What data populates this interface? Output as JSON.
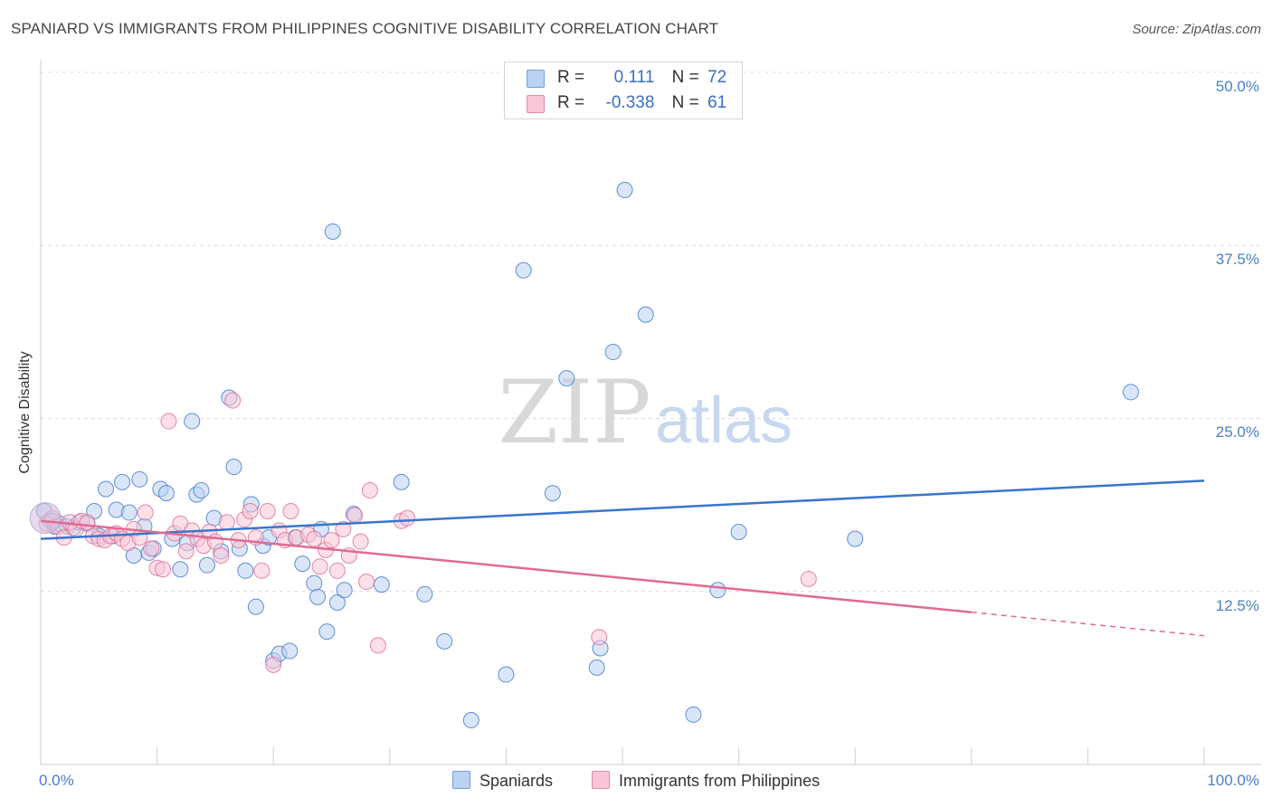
{
  "title": "SPANIARD VS IMMIGRANTS FROM PHILIPPINES COGNITIVE DISABILITY CORRELATION CHART",
  "source": "Source: ZipAtlas.com",
  "watermark": {
    "zip": "ZIP",
    "atlas": "atlas"
  },
  "legend": {
    "r_label": "R =",
    "n_label": "N =",
    "rows": [
      {
        "r": "0.111",
        "n": "72",
        "color": "#6f9ee0",
        "fill": "#bcd2f3"
      },
      {
        "r": "-0.338",
        "n": "61",
        "color": "#e88aa8",
        "fill": "#f8c6d6"
      }
    ]
  },
  "bottom_legend": [
    "Spaniards",
    "Immigrants from Philippines"
  ],
  "chart_data": {
    "type": "scatter",
    "title": "SPANIARD VS IMMIGRANTS FROM PHILIPPINES COGNITIVE DISABILITY CORRELATION CHART",
    "ylabel": "Cognitive Disability",
    "xlabel": "",
    "xlim": [
      0,
      100
    ],
    "ylim": [
      0,
      50
    ],
    "x_tick_labels": [
      "0.0%",
      "100.0%"
    ],
    "y_ticks": [
      12.5,
      25.0,
      37.5,
      50.0
    ],
    "y_tick_labels": [
      "12.5%",
      "25.0%",
      "37.5%",
      "50.0%"
    ],
    "grid": true,
    "legend_position": "top-center",
    "series": [
      {
        "name": "Spaniards",
        "color": "#3a75cc",
        "fill": "#bcd2f3",
        "trend": {
          "x": [
            0,
            100
          ],
          "y": [
            16.3,
            20.5
          ]
        },
        "points": [
          [
            0.3,
            18.3
          ],
          [
            0.8,
            17.6
          ],
          [
            1.2,
            17.2
          ],
          [
            1.6,
            17.4
          ],
          [
            2.3,
            17.2
          ],
          [
            2.8,
            17.1
          ],
          [
            3.3,
            17.5
          ],
          [
            4.0,
            17.4
          ],
          [
            4.6,
            18.3
          ],
          [
            5.0,
            16.5
          ],
          [
            5.6,
            19.9
          ],
          [
            6.2,
            16.5
          ],
          [
            6.5,
            18.4
          ],
          [
            7.0,
            20.4
          ],
          [
            7.6,
            18.2
          ],
          [
            8.0,
            15.1
          ],
          [
            8.5,
            20.6
          ],
          [
            8.9,
            17.2
          ],
          [
            9.3,
            15.3
          ],
          [
            9.7,
            15.6
          ],
          [
            10.3,
            19.9
          ],
          [
            10.8,
            19.6
          ],
          [
            11.3,
            16.3
          ],
          [
            12.0,
            14.1
          ],
          [
            12.6,
            16.0
          ],
          [
            13.0,
            24.8
          ],
          [
            13.4,
            19.5
          ],
          [
            13.8,
            19.8
          ],
          [
            14.3,
            14.4
          ],
          [
            14.9,
            17.8
          ],
          [
            15.5,
            15.4
          ],
          [
            16.2,
            26.5
          ],
          [
            16.6,
            21.5
          ],
          [
            17.1,
            15.6
          ],
          [
            17.6,
            14.0
          ],
          [
            18.1,
            18.8
          ],
          [
            18.5,
            11.4
          ],
          [
            19.1,
            15.8
          ],
          [
            19.6,
            16.4
          ],
          [
            20.0,
            7.5
          ],
          [
            20.5,
            8.0
          ],
          [
            21.4,
            8.2
          ],
          [
            21.9,
            16.4
          ],
          [
            22.5,
            14.5
          ],
          [
            23.5,
            13.1
          ],
          [
            23.8,
            12.1
          ],
          [
            24.1,
            17.0
          ],
          [
            24.6,
            9.6
          ],
          [
            25.1,
            38.5
          ],
          [
            25.5,
            11.7
          ],
          [
            26.1,
            12.6
          ],
          [
            26.9,
            18.1
          ],
          [
            29.3,
            13.0
          ],
          [
            31.0,
            20.4
          ],
          [
            33.0,
            12.3
          ],
          [
            34.7,
            8.9
          ],
          [
            37.0,
            3.2
          ],
          [
            40.0,
            6.5
          ],
          [
            41.5,
            35.7
          ],
          [
            44.0,
            19.6
          ],
          [
            45.2,
            27.9
          ],
          [
            47.8,
            7.0
          ],
          [
            48.1,
            8.4
          ],
          [
            49.2,
            29.8
          ],
          [
            50.2,
            41.5
          ],
          [
            52.0,
            32.5
          ],
          [
            56.1,
            3.6
          ],
          [
            58.2,
            12.6
          ],
          [
            60.0,
            16.8
          ],
          [
            70.0,
            16.3
          ],
          [
            93.7,
            26.9
          ],
          [
            1.0,
            17.6
          ]
        ]
      },
      {
        "name": "Immigrants from Philippines",
        "color": "#e06a95",
        "fill": "#f8c6d6",
        "trend": {
          "x": [
            0,
            80
          ],
          "y": [
            17.6,
            11.0
          ]
        },
        "trend_dashed": {
          "x": [
            80,
            100
          ],
          "y": [
            11.0,
            9.3
          ]
        },
        "points": [
          [
            0.5,
            17.4
          ],
          [
            1.0,
            17.8
          ],
          [
            1.5,
            17.2
          ],
          [
            2.0,
            16.4
          ],
          [
            2.5,
            17.5
          ],
          [
            3.0,
            17.0
          ],
          [
            3.5,
            17.6
          ],
          [
            4.0,
            17.5
          ],
          [
            4.5,
            16.5
          ],
          [
            5.0,
            16.3
          ],
          [
            5.5,
            16.2
          ],
          [
            6.0,
            16.5
          ],
          [
            6.5,
            16.7
          ],
          [
            7.0,
            16.3
          ],
          [
            7.5,
            16.0
          ],
          [
            8.0,
            17.0
          ],
          [
            8.5,
            16.4
          ],
          [
            9.0,
            18.2
          ],
          [
            9.5,
            15.6
          ],
          [
            10.0,
            14.2
          ],
          [
            10.5,
            14.1
          ],
          [
            11.0,
            24.8
          ],
          [
            11.5,
            16.7
          ],
          [
            12.0,
            17.4
          ],
          [
            12.5,
            15.4
          ],
          [
            13.0,
            16.9
          ],
          [
            13.5,
            16.3
          ],
          [
            14.0,
            15.8
          ],
          [
            14.5,
            16.8
          ],
          [
            15.0,
            16.1
          ],
          [
            15.5,
            15.1
          ],
          [
            16.0,
            17.5
          ],
          [
            16.5,
            26.3
          ],
          [
            17.0,
            16.2
          ],
          [
            17.5,
            17.7
          ],
          [
            18.0,
            18.3
          ],
          [
            18.5,
            16.4
          ],
          [
            19.0,
            14.0
          ],
          [
            19.5,
            18.3
          ],
          [
            20.0,
            7.2
          ],
          [
            20.5,
            16.9
          ],
          [
            21.0,
            16.2
          ],
          [
            21.5,
            18.3
          ],
          [
            22.0,
            16.4
          ],
          [
            23.0,
            16.6
          ],
          [
            23.5,
            16.3
          ],
          [
            24.0,
            14.3
          ],
          [
            24.5,
            15.5
          ],
          [
            25.0,
            16.2
          ],
          [
            25.5,
            14.0
          ],
          [
            26.0,
            17.0
          ],
          [
            26.5,
            15.1
          ],
          [
            27.0,
            18.0
          ],
          [
            27.5,
            16.1
          ],
          [
            28.0,
            13.2
          ],
          [
            28.3,
            19.8
          ],
          [
            29.0,
            8.6
          ],
          [
            31.0,
            17.6
          ],
          [
            31.5,
            17.8
          ],
          [
            48.0,
            9.2
          ],
          [
            66.0,
            13.4
          ]
        ]
      }
    ]
  }
}
